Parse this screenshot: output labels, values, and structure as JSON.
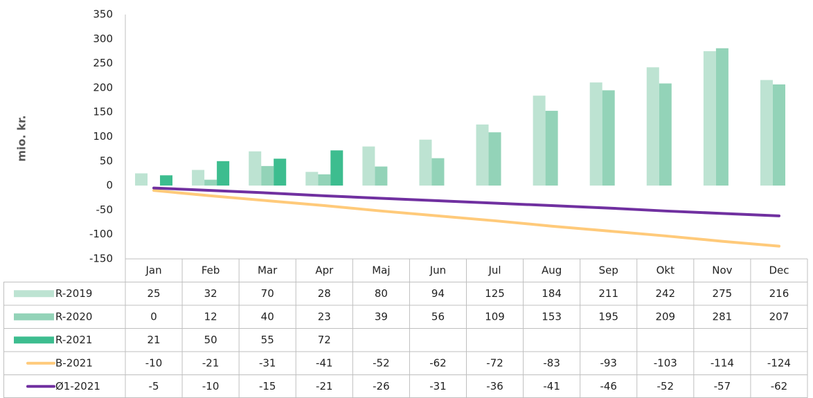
{
  "chart_data": {
    "type": "bar",
    "ylabel": "mio. kr.",
    "categories": [
      "Jan",
      "Feb",
      "Mar",
      "Apr",
      "Maj",
      "Jun",
      "Jul",
      "Aug",
      "Sep",
      "Okt",
      "Nov",
      "Dec"
    ],
    "series": [
      {
        "name": "R-2019",
        "type": "bar",
        "color": "#bde3d2",
        "values": [
          25,
          32,
          70,
          28,
          80,
          94,
          125,
          184,
          211,
          242,
          275,
          216
        ]
      },
      {
        "name": "R-2020",
        "type": "bar",
        "color": "#93d3b8",
        "values": [
          0,
          12,
          40,
          23,
          39,
          56,
          109,
          153,
          195,
          209,
          281,
          207
        ]
      },
      {
        "name": "R-2021",
        "type": "bar",
        "color": "#3dbd8f",
        "values": [
          21,
          50,
          55,
          72,
          null,
          null,
          null,
          null,
          null,
          null,
          null,
          null
        ]
      },
      {
        "name": "B-2021",
        "type": "line",
        "color": "#ffca7a",
        "values": [
          -10,
          -21,
          -31,
          -41,
          -52,
          -62,
          -72,
          -83,
          -93,
          -103,
          -114,
          -124
        ]
      },
      {
        "name": "Ø1-2021",
        "type": "line",
        "color": "#7030a0",
        "values": [
          -5,
          -10,
          -15,
          -21,
          -26,
          -31,
          -36,
          -41,
          -46,
          -52,
          -57,
          -62
        ]
      }
    ],
    "ylim": [
      -150,
      350
    ],
    "yticks": [
      -150,
      -100,
      -50,
      0,
      50,
      100,
      150,
      200,
      250,
      300,
      350
    ],
    "grid": false
  }
}
